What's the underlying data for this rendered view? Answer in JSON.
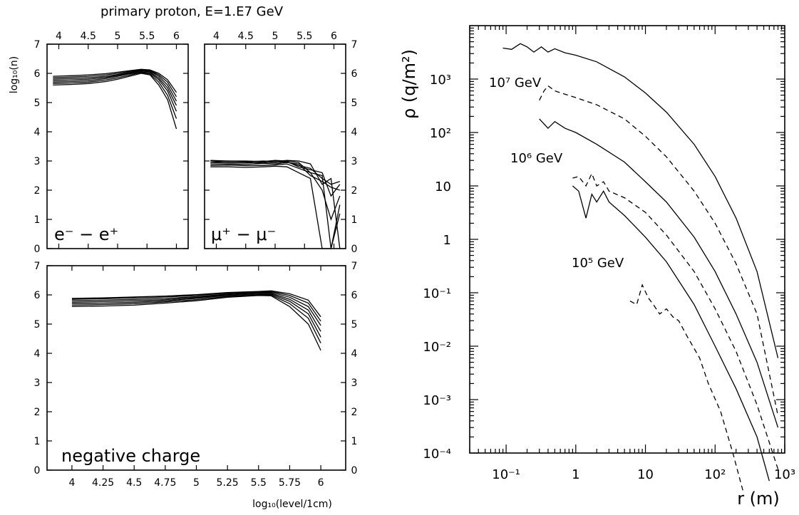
{
  "figure": {
    "title": "primary proton, E=1.E7 GeV"
  },
  "chart_data": [
    {
      "type": "line",
      "panel": "electron excess",
      "annotation": "e⁻ − e⁺",
      "ylabel": "log₁₀(n)",
      "ylim": [
        0,
        7
      ],
      "y_ticks": [
        0,
        1,
        2,
        3,
        4,
        5,
        6,
        7
      ],
      "xlim": [
        3.8,
        6.2
      ],
      "x_ticks": [
        "4",
        "4.5",
        "5",
        "5.5",
        "6"
      ],
      "x": [
        3.9,
        4.2,
        4.5,
        4.8,
        5.0,
        5.2,
        5.4,
        5.55,
        5.7,
        5.85,
        6.0
      ],
      "series": [
        {
          "values": [
            5.6,
            5.62,
            5.65,
            5.72,
            5.8,
            5.9,
            6.0,
            5.95,
            5.6,
            5.1,
            4.1
          ]
        },
        {
          "values": [
            5.65,
            5.67,
            5.7,
            5.77,
            5.85,
            5.94,
            6.03,
            5.98,
            5.7,
            5.25,
            4.45
          ]
        },
        {
          "values": [
            5.7,
            5.72,
            5.75,
            5.82,
            5.9,
            5.98,
            6.05,
            6.02,
            5.78,
            5.4,
            4.7
          ]
        },
        {
          "values": [
            5.75,
            5.77,
            5.8,
            5.86,
            5.93,
            6.01,
            6.08,
            6.05,
            5.84,
            5.5,
            4.9
          ]
        },
        {
          "values": [
            5.8,
            5.82,
            5.85,
            5.9,
            5.96,
            6.03,
            6.1,
            6.08,
            5.9,
            5.6,
            5.05
          ]
        },
        {
          "values": [
            5.85,
            5.87,
            5.9,
            5.95,
            6.0,
            6.06,
            6.12,
            6.1,
            5.95,
            5.7,
            5.2
          ]
        },
        {
          "values": [
            5.9,
            5.92,
            5.95,
            5.99,
            6.04,
            6.09,
            6.14,
            6.12,
            6.0,
            5.78,
            5.35
          ]
        }
      ]
    },
    {
      "type": "line",
      "panel": "muon excess",
      "annotation": "μ⁺ − μ⁻",
      "ylim": [
        0,
        7
      ],
      "y_ticks": [
        0,
        1,
        2,
        3,
        4,
        5,
        6,
        7
      ],
      "xlim": [
        3.8,
        6.2
      ],
      "x_ticks": [
        "4",
        "4.5",
        "5",
        "5.5",
        "6"
      ],
      "x": [
        3.9,
        4.2,
        4.5,
        4.8,
        5.0,
        5.2,
        5.4,
        5.6,
        5.8,
        5.95,
        6.1
      ],
      "series": [
        {
          "values": [
            2.8,
            2.8,
            2.78,
            2.8,
            2.82,
            2.8,
            2.6,
            2.4,
            0.0,
            0.0,
            1.2
          ]
        },
        {
          "values": [
            2.85,
            2.86,
            2.84,
            2.85,
            2.86,
            2.9,
            2.75,
            2.6,
            2.0,
            1.0,
            1.8
          ]
        },
        {
          "values": [
            2.9,
            2.9,
            2.88,
            2.92,
            2.9,
            2.95,
            2.9,
            2.5,
            2.3,
            2.1,
            2.0
          ]
        },
        {
          "values": [
            2.95,
            2.94,
            2.93,
            2.96,
            2.94,
            2.98,
            2.8,
            2.7,
            2.6,
            1.8,
            2.2
          ]
        },
        {
          "values": [
            3.0,
            2.98,
            2.97,
            3.0,
            2.98,
            3.02,
            3.0,
            2.9,
            2.2,
            2.4,
            0.0
          ]
        },
        {
          "values": [
            3.02,
            3.0,
            3.0,
            2.98,
            3.02,
            3.0,
            2.95,
            2.6,
            2.5,
            0.0,
            1.5
          ]
        },
        {
          "values": [
            2.95,
            3.0,
            2.96,
            2.92,
            3.0,
            2.96,
            2.85,
            2.75,
            2.4,
            2.2,
            2.3
          ]
        }
      ]
    },
    {
      "type": "line",
      "panel": "negative charge",
      "annotation": "negative charge",
      "xlabel": "log₁₀(level/1cm)",
      "ylim": [
        0,
        7
      ],
      "y_ticks": [
        0,
        1,
        2,
        3,
        4,
        5,
        6,
        7
      ],
      "xlim": [
        3.8,
        6.2
      ],
      "x_ticks": [
        "4",
        "4.25",
        "4.5",
        "4.75",
        "5",
        "5.25",
        "5.5",
        "5.75",
        "6"
      ],
      "x": [
        4.0,
        4.25,
        4.5,
        4.75,
        5.0,
        5.25,
        5.5,
        5.6,
        5.75,
        5.9,
        6.0
      ],
      "series": [
        {
          "values": [
            5.6,
            5.62,
            5.65,
            5.72,
            5.8,
            5.92,
            5.98,
            5.97,
            5.6,
            5.0,
            4.1
          ]
        },
        {
          "values": [
            5.65,
            5.67,
            5.7,
            5.76,
            5.84,
            5.95,
            6.0,
            6.0,
            5.7,
            5.2,
            4.35
          ]
        },
        {
          "values": [
            5.7,
            5.72,
            5.75,
            5.8,
            5.88,
            5.98,
            6.03,
            6.03,
            5.78,
            5.35,
            4.55
          ]
        },
        {
          "values": [
            5.75,
            5.77,
            5.8,
            5.84,
            5.91,
            6.01,
            6.06,
            6.06,
            5.85,
            5.48,
            4.75
          ]
        },
        {
          "values": [
            5.8,
            5.82,
            5.85,
            5.88,
            5.94,
            6.03,
            6.08,
            6.09,
            5.92,
            5.6,
            4.95
          ]
        },
        {
          "values": [
            5.85,
            5.87,
            5.9,
            5.93,
            5.98,
            6.06,
            6.1,
            6.12,
            5.98,
            5.72,
            5.1
          ]
        },
        {
          "values": [
            5.88,
            5.9,
            5.93,
            5.96,
            6.01,
            6.08,
            6.12,
            6.14,
            6.04,
            5.82,
            5.25
          ]
        }
      ]
    },
    {
      "type": "line",
      "panel": "lateral density",
      "ylabel": "ρ (q/m²)",
      "xlabel": "r (m)",
      "log_x": true,
      "log_y": true,
      "xlim": [
        0.03,
        1000
      ],
      "ylim": [
        0.0001,
        10000
      ],
      "x_ticks": [
        "10⁻¹",
        "1",
        "10",
        "10²",
        "10³"
      ],
      "y_ticks": [
        "10⁻⁴",
        "10⁻³",
        "10⁻²",
        "10⁻¹",
        "1",
        "10",
        "10²",
        "10³"
      ],
      "annotations": [
        "10⁷ GeV",
        "10⁶ GeV",
        "10⁵ GeV"
      ],
      "series": [
        {
          "style": "solid",
          "x": [
            0.09,
            0.12,
            0.16,
            0.2,
            0.25,
            0.32,
            0.4,
            0.5,
            0.7,
            1,
            2,
            5,
            10,
            20,
            50,
            100,
            200,
            400,
            800
          ],
          "values": [
            3800,
            3600,
            4600,
            4000,
            3200,
            4000,
            3200,
            3700,
            3100,
            2800,
            2100,
            1100,
            550,
            240,
            60,
            15,
            2.5,
            0.25,
            0.006
          ]
        },
        {
          "style": "dashed",
          "x": [
            0.3,
            0.35,
            0.4,
            0.5,
            0.7,
            1,
            2,
            5,
            10,
            20,
            50,
            100,
            200,
            400,
            800
          ],
          "values": [
            400,
            600,
            750,
            600,
            520,
            450,
            330,
            180,
            85,
            35,
            8,
            2,
            0.35,
            0.04,
            0.0005
          ]
        },
        {
          "style": "solid",
          "x": [
            0.3,
            0.4,
            0.5,
            0.7,
            1,
            2,
            5,
            10,
            20,
            50,
            100,
            200,
            400,
            800
          ],
          "values": [
            180,
            120,
            160,
            120,
            100,
            60,
            28,
            12,
            5,
            1.1,
            0.25,
            0.04,
            0.005,
            0.0003
          ]
        },
        {
          "style": "dashed",
          "x": [
            0.9,
            1.1,
            1.4,
            1.7,
            2,
            2.5,
            3,
            5,
            10,
            20,
            50,
            100,
            200,
            400,
            800
          ],
          "values": [
            14,
            15,
            10,
            17,
            10,
            12,
            8,
            6,
            3.2,
            1.2,
            0.25,
            0.05,
            0.008,
            0.0008,
            5e-05
          ]
        },
        {
          "style": "solid",
          "x": [
            0.9,
            1.1,
            1.4,
            1.7,
            2,
            2.5,
            3,
            5,
            10,
            20,
            50,
            100,
            200,
            400,
            600
          ],
          "values": [
            10,
            8,
            2.5,
            7,
            5,
            8,
            5,
            2.8,
            1.1,
            0.38,
            0.06,
            0.01,
            0.0016,
            0.0002,
            3e-05
          ]
        },
        {
          "style": "dashed",
          "x": [
            6,
            7.5,
            9,
            11,
            13,
            16,
            20,
            25,
            30,
            40,
            60,
            80,
            120,
            180,
            250
          ],
          "values": [
            0.07,
            0.06,
            0.14,
            0.08,
            0.06,
            0.04,
            0.05,
            0.035,
            0.03,
            0.015,
            0.006,
            0.002,
            0.0006,
            0.0001,
            2e-05
          ]
        }
      ]
    }
  ]
}
